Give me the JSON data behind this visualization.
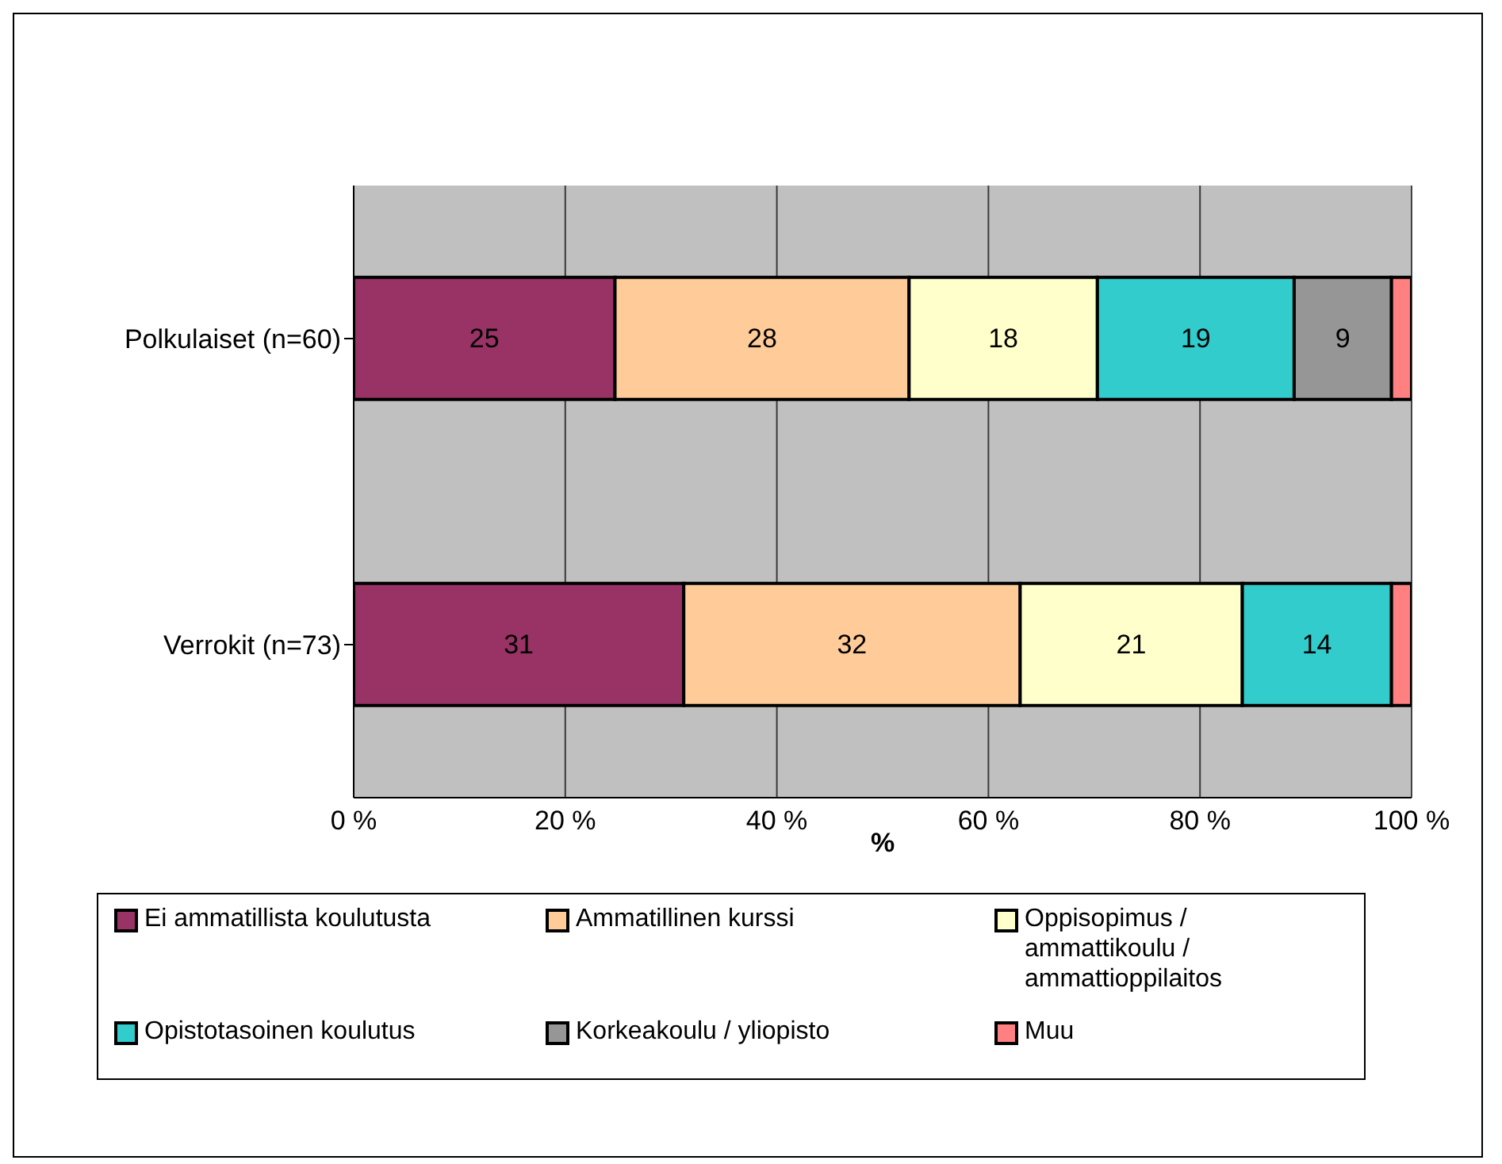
{
  "chart_data": {
    "type": "bar",
    "orientation": "horizontal",
    "stacked": true,
    "xlabel": "%",
    "categories": [
      "Polkulaiset (n=60)",
      "Verrokit (n=73)"
    ],
    "series": [
      {
        "name": "Ei ammatillista koulutusta",
        "color": "#993366",
        "values": [
          24.7,
          31.2
        ],
        "value_labels": [
          "25",
          "31"
        ]
      },
      {
        "name": "Ammatillinen kurssi",
        "color": "#ffcc99",
        "values": [
          27.8,
          31.8
        ],
        "value_labels": [
          "28",
          "32"
        ]
      },
      {
        "name": "Oppisopimus / ammattikoulu / ammattioppilaitos",
        "color": "#ffffcc",
        "values": [
          17.8,
          21.0
        ],
        "value_labels": [
          "18",
          "21"
        ]
      },
      {
        "name": "Opistotasoinen koulutus",
        "color": "#33cccc",
        "values": [
          18.6,
          14.1
        ],
        "value_labels": [
          "19",
          "14"
        ]
      },
      {
        "name": "Korkeakoulu / yliopisto",
        "color": "#969696",
        "values": [
          9.2,
          null
        ],
        "value_labels": [
          "9",
          null
        ]
      },
      {
        "name": "Muu",
        "color": "#ff8080",
        "values": [
          1.9,
          1.9
        ],
        "value_labels": [
          null,
          null
        ]
      }
    ],
    "xlim": [
      0,
      100
    ],
    "xticks": [
      {
        "value": 0,
        "label": "0 %"
      },
      {
        "value": 20,
        "label": "20 %"
      },
      {
        "value": 40,
        "label": "40 %"
      },
      {
        "value": 60,
        "label": "60 %"
      },
      {
        "value": 80,
        "label": "80 %"
      },
      {
        "value": 100,
        "label": "100 %"
      }
    ],
    "grid": "x",
    "legend": "bottom"
  }
}
